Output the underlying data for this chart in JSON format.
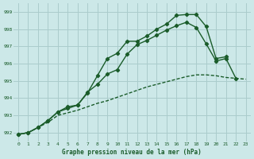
{
  "background_color": "#cce8e8",
  "grid_color": "#aacccc",
  "line_color": "#1a5c2a",
  "title": "Graphe pression niveau de la mer (hPa)",
  "xlim": [
    -0.5,
    23.5
  ],
  "ylim": [
    991.5,
    999.5
  ],
  "yticks": [
    992,
    993,
    994,
    995,
    996,
    997,
    998,
    999
  ],
  "xticks": [
    0,
    1,
    2,
    3,
    4,
    5,
    6,
    7,
    8,
    9,
    10,
    11,
    12,
    13,
    14,
    15,
    16,
    17,
    18,
    19,
    20,
    21,
    22,
    23
  ],
  "line1_x": [
    0,
    1,
    2,
    3,
    4,
    5,
    6,
    7,
    8,
    9,
    10,
    11,
    12,
    13,
    14,
    15,
    16,
    17,
    18,
    19,
    20,
    21
  ],
  "line1_y": [
    991.9,
    992.0,
    992.3,
    992.7,
    993.2,
    993.5,
    993.6,
    994.3,
    995.3,
    996.3,
    996.6,
    997.3,
    997.3,
    997.6,
    998.0,
    998.3,
    998.8,
    998.85,
    998.85,
    998.15,
    996.3,
    996.4
  ],
  "line2_x": [
    0,
    1,
    2,
    3,
    4,
    5,
    6,
    7,
    8,
    9,
    10,
    11,
    12,
    13,
    14,
    15,
    16,
    17,
    18,
    19,
    20,
    21,
    22
  ],
  "line2_y": [
    991.9,
    992.0,
    992.3,
    992.7,
    993.2,
    993.4,
    993.6,
    994.35,
    994.8,
    995.4,
    995.65,
    996.55,
    997.1,
    997.35,
    997.65,
    997.95,
    998.2,
    998.4,
    998.1,
    997.15,
    996.15,
    996.3,
    995.15
  ],
  "line3_x": [
    0,
    1,
    2,
    3,
    4,
    5,
    6,
    7,
    8,
    9,
    10,
    11,
    12,
    13,
    14,
    15,
    16,
    17,
    18,
    19,
    20,
    21,
    22,
    23
  ],
  "line3_y": [
    991.9,
    992.0,
    992.3,
    992.6,
    993.0,
    993.15,
    993.3,
    993.5,
    993.7,
    993.85,
    994.05,
    994.25,
    994.45,
    994.65,
    994.8,
    994.95,
    995.1,
    995.25,
    995.35,
    995.35,
    995.3,
    995.2,
    995.15,
    995.1
  ]
}
